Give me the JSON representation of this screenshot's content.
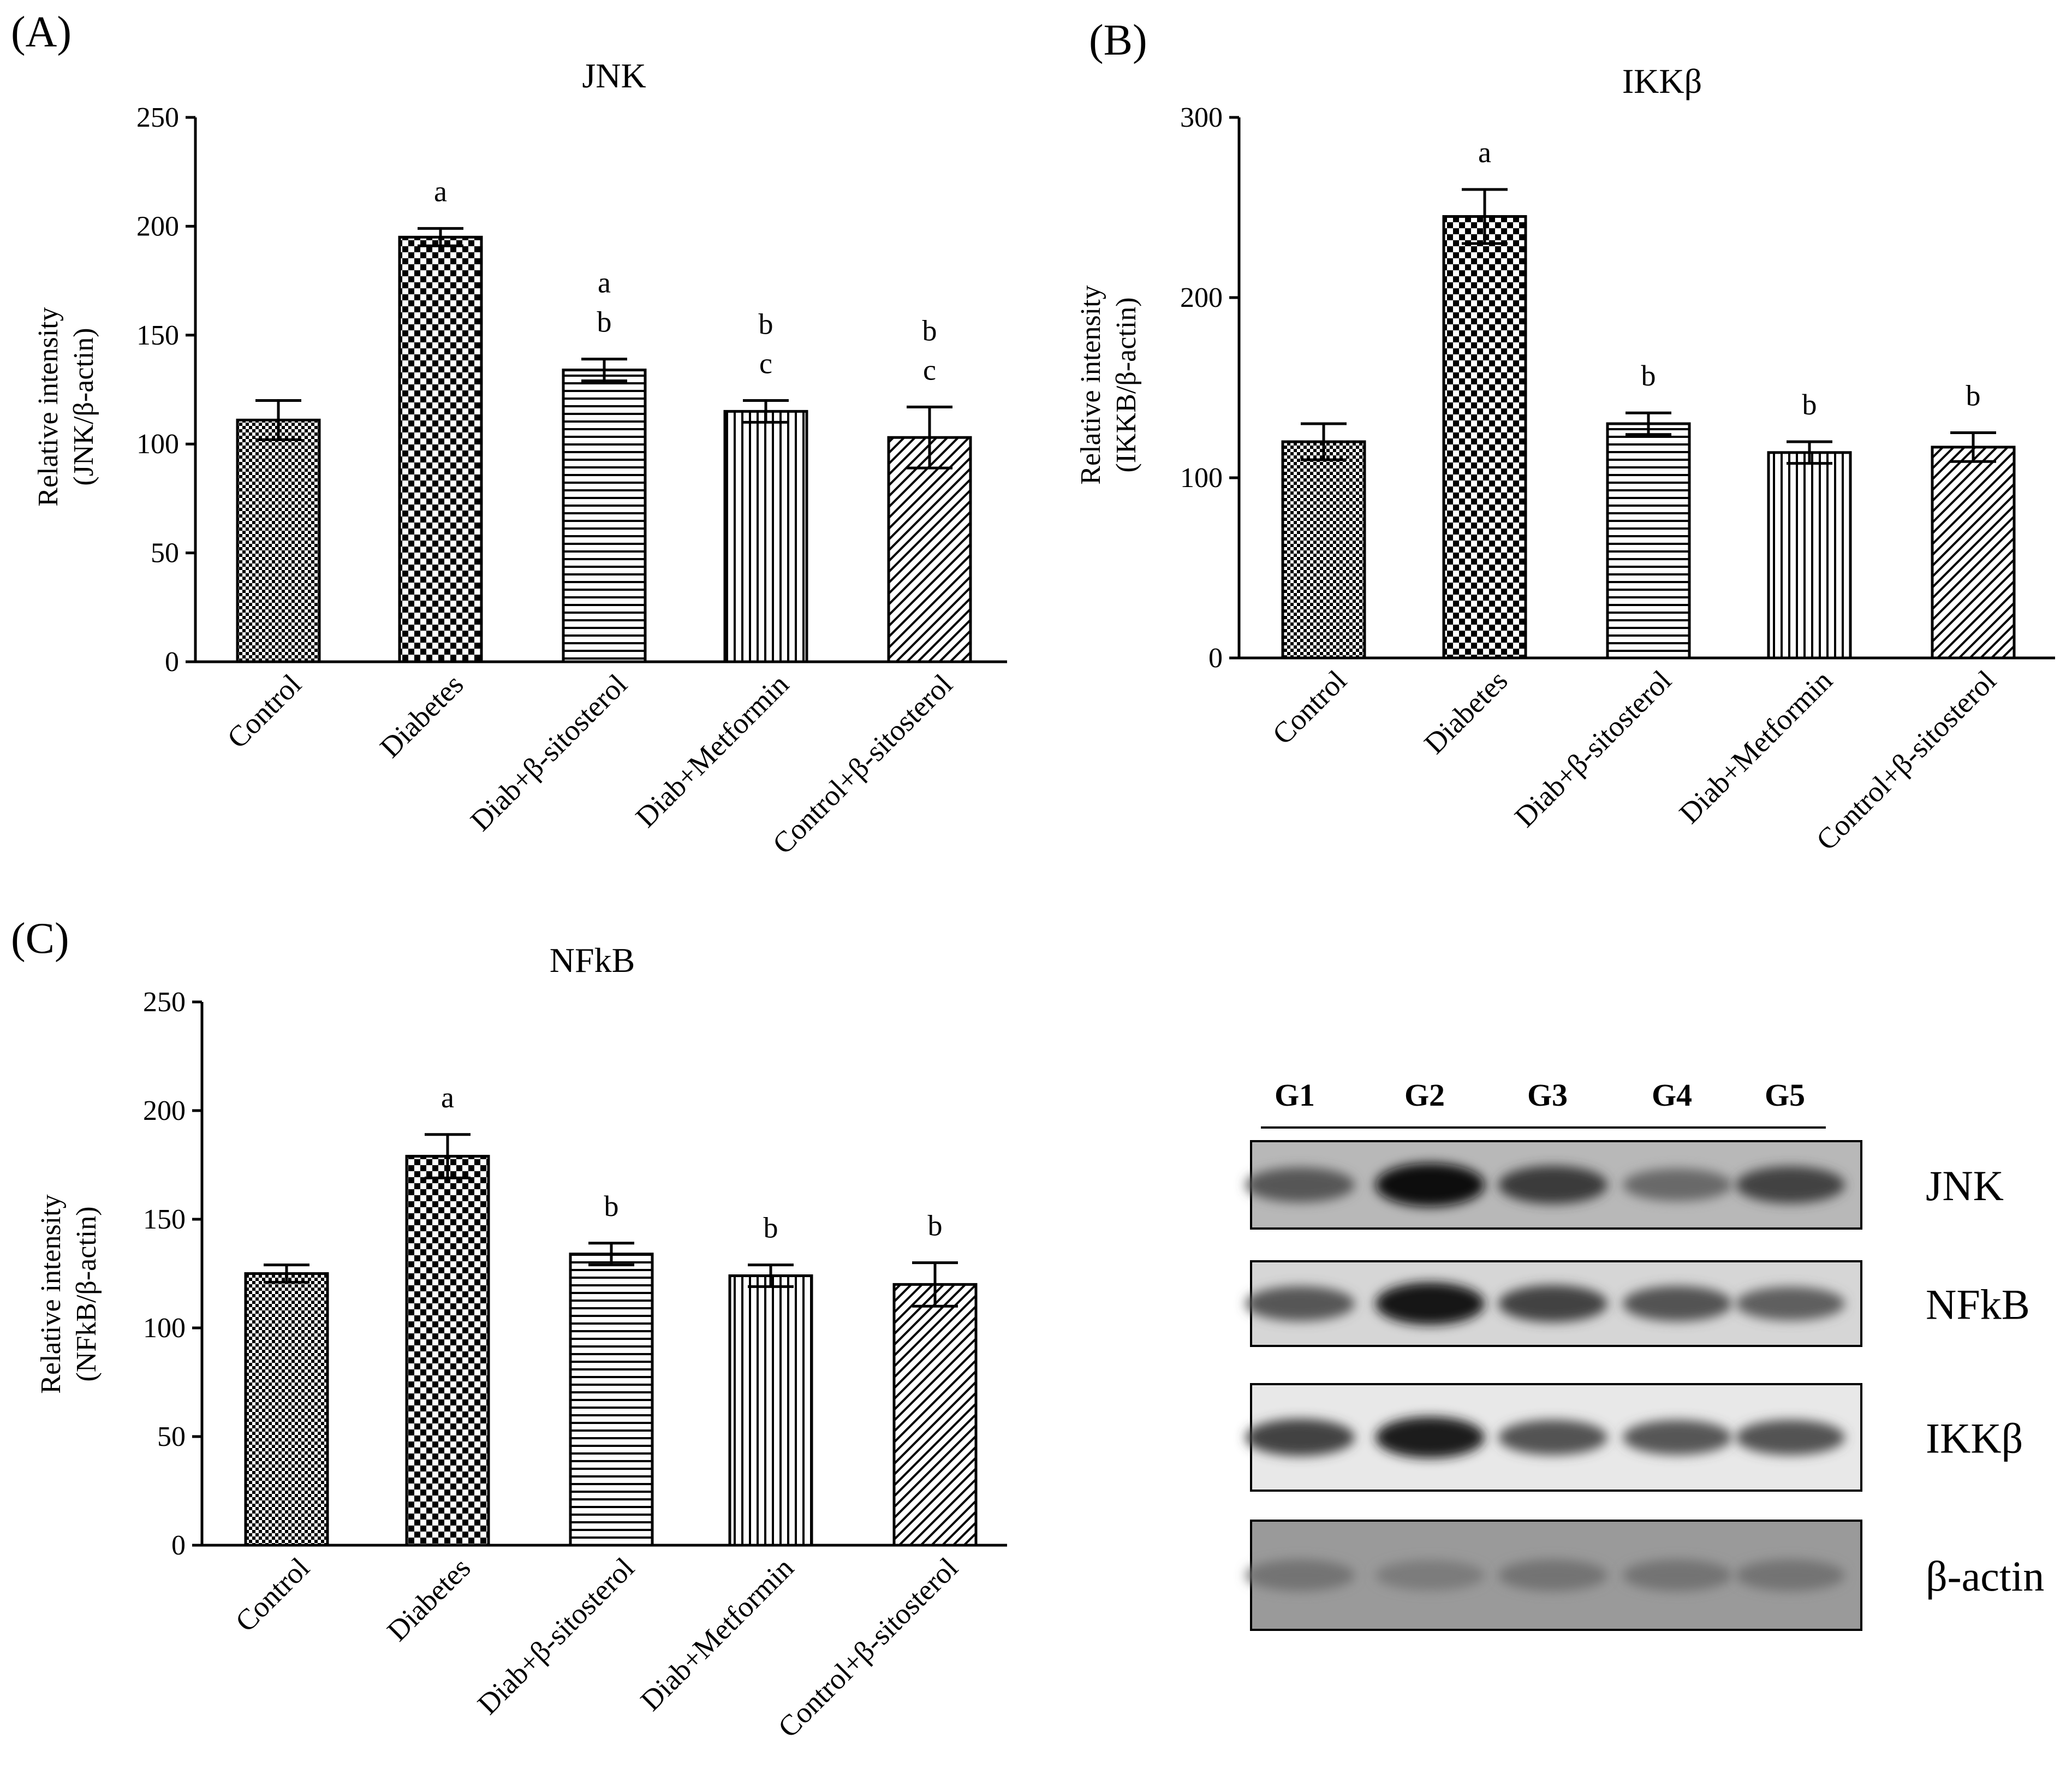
{
  "figure": {
    "panels": [
      {
        "label": "(A)"
      },
      {
        "label": "(B)"
      },
      {
        "label": "(C)"
      }
    ],
    "blot": {
      "lanes": [
        "G1",
        "G2",
        "G3",
        "G4",
        "G5"
      ],
      "rows": [
        {
          "label": "JNK",
          "band_intensity": [
            0.6,
            1.0,
            0.75,
            0.5,
            0.7
          ],
          "background": "#b8b8b8"
        },
        {
          "label": "NFkB",
          "band_intensity": [
            0.6,
            0.95,
            0.7,
            0.62,
            0.55
          ],
          "background": "#d6d6d6"
        },
        {
          "label": "IKKβ",
          "band_intensity": [
            0.7,
            0.9,
            0.62,
            0.6,
            0.62
          ],
          "background": "#e8e8e8"
        },
        {
          "label": "β-actin",
          "band_intensity": [
            0.45,
            0.4,
            0.45,
            0.45,
            0.45
          ],
          "background": "#9a9a9a"
        }
      ]
    }
  },
  "chart_data": [
    {
      "type": "bar",
      "title": "JNK",
      "ylabel": [
        "Relative intensity",
        "(JNK/β-actin)"
      ],
      "ylim": [
        0,
        250
      ],
      "yticks": [
        0,
        50,
        100,
        150,
        200,
        250
      ],
      "categories": [
        "Control",
        "Diabetes",
        "Diab+β-sitosterol",
        "Diab+Metformin",
        "Control+β-sitosterol"
      ],
      "values": [
        111,
        195,
        134,
        115,
        103
      ],
      "errors": [
        9,
        4,
        5,
        5,
        14
      ],
      "significance": [
        [],
        [
          "a"
        ],
        [
          "a",
          "b"
        ],
        [
          "b",
          "c"
        ],
        [
          "b",
          "c"
        ]
      ],
      "patterns": [
        "fine-check",
        "coarse-check",
        "horizontal",
        "vertical",
        "diagonal"
      ]
    },
    {
      "type": "bar",
      "title": "IKKβ",
      "ylabel": [
        "Relative intensity",
        "(IKKB/β-actin)"
      ],
      "ylim": [
        0,
        300
      ],
      "yticks": [
        0,
        100,
        200,
        300
      ],
      "categories": [
        "Control",
        "Diabetes",
        "Diab+β-sitosterol",
        "Diab+Metformin",
        "Control+β-sitosterol"
      ],
      "values": [
        120,
        245,
        130,
        114,
        117
      ],
      "errors": [
        10,
        15,
        6,
        6,
        8
      ],
      "significance": [
        [],
        [
          "a"
        ],
        [
          "b"
        ],
        [
          "b"
        ],
        [
          "b"
        ]
      ],
      "patterns": [
        "fine-check",
        "coarse-check",
        "horizontal",
        "vertical",
        "diagonal"
      ]
    },
    {
      "type": "bar",
      "title": "NFkB",
      "ylabel": [
        "Relative intensity",
        "(NFkB/β-actin)"
      ],
      "ylim": [
        0,
        250
      ],
      "yticks": [
        0,
        50,
        100,
        150,
        200,
        250
      ],
      "categories": [
        "Control",
        "Diabetes",
        "Diab+β-sitosterol",
        "Diab+Metformin",
        "Control+β-sitosterol"
      ],
      "values": [
        125,
        179,
        134,
        124,
        120
      ],
      "errors": [
        4,
        10,
        5,
        5,
        10
      ],
      "significance": [
        [],
        [
          "a"
        ],
        [
          "b"
        ],
        [
          "b"
        ],
        [
          "b"
        ]
      ],
      "patterns": [
        "fine-check",
        "coarse-check",
        "horizontal",
        "vertical",
        "diagonal"
      ]
    }
  ]
}
